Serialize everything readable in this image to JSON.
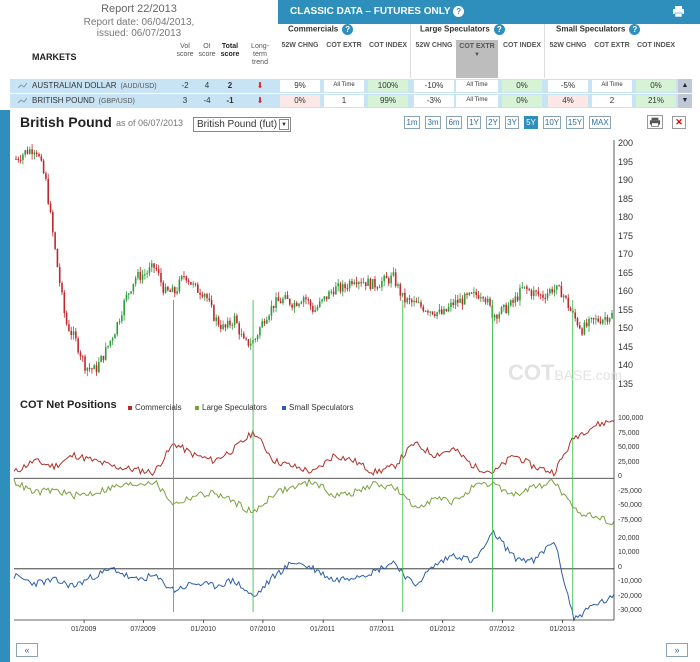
{
  "report": {
    "title": "Report 22/2013",
    "date": "Report date: 06/04/2013,",
    "issued": "issued: 06/07/2013"
  },
  "markets_header": {
    "label": "MARKETS",
    "vol": "Vol score",
    "oi": "OI score",
    "total": "Total score",
    "trend": "Long-term trend"
  },
  "classic": {
    "title": "CLASSIC DATA – FUTURES ONLY",
    "groups": [
      "Commercials",
      "Large Speculators",
      "Small Speculators"
    ],
    "sub": [
      "52W CHNG",
      "COT EXTR",
      "COT INDEX"
    ]
  },
  "markets": [
    {
      "name": "AUSTRALIAN DOLLAR",
      "code": "(AUD/USD)",
      "vol": "-2",
      "oi": "4",
      "total": "2",
      "c52": "9%",
      "cext": "All Time",
      "cidx": "100%",
      "l52": "-10%",
      "lext": "All Time",
      "lidx": "0%",
      "s52": "-5%",
      "sext": "All Time",
      "sidx": "0%"
    },
    {
      "name": "BRITISH POUND",
      "code": "(GBP/USD)",
      "vol": "3",
      "oi": "-4",
      "total": "-1",
      "c52": "0%",
      "cext": "1",
      "cidx": "99%",
      "l52": "-3%",
      "lext": "All Time",
      "lidx": "0%",
      "s52": "4%",
      "sext": "2",
      "sidx": "21%"
    }
  ],
  "chart_header": {
    "title": "British Pound",
    "asof": "as of 06/07/2013",
    "contract": "British Pound (fut)",
    "ranges": [
      "1m",
      "3m",
      "6m",
      "1Y",
      "2Y",
      "3Y",
      "5Y",
      "10Y",
      "15Y",
      "MAX"
    ],
    "active_range": "5Y"
  },
  "watermark": {
    "main": "COT",
    "small": "BASE.com"
  },
  "cot_section": {
    "title": "COT Net Positions",
    "legend": [
      "Commercials",
      "Large Speculators",
      "Small Speculators"
    ]
  },
  "colors": {
    "accent": "#2e8fbd",
    "commercials": "#b03028",
    "large": "#7ba23f",
    "small": "#2c5fa8",
    "up_candle": "#2e9b3a",
    "down_candle": "#c0272d"
  },
  "chart_data": [
    {
      "type": "line",
      "title": "British Pound",
      "x": [
        "2008-06",
        "2008-07",
        "2008-08",
        "2008-09",
        "2008-10",
        "2008-11",
        "2008-12",
        "2009-01",
        "2009-02",
        "2009-03",
        "2009-04",
        "2009-05",
        "2009-06",
        "2009-07",
        "2009-08",
        "2009-09",
        "2009-10",
        "2009-11",
        "2009-12",
        "2010-01",
        "2010-02",
        "2010-03",
        "2010-04",
        "2010-05",
        "2010-06",
        "2010-07",
        "2010-08",
        "2010-09",
        "2010-10",
        "2010-11",
        "2010-12",
        "2011-01",
        "2011-02",
        "2011-03",
        "2011-04",
        "2011-05",
        "2011-06",
        "2011-07",
        "2011-08",
        "2011-09",
        "2011-10",
        "2011-11",
        "2011-12",
        "2012-01",
        "2012-02",
        "2012-03",
        "2012-04",
        "2012-05",
        "2012-06",
        "2012-07",
        "2012-08",
        "2012-09",
        "2012-10",
        "2012-11",
        "2012-12",
        "2013-01",
        "2013-02",
        "2013-03",
        "2013-04",
        "2013-05",
        "2013-06"
      ],
      "series": [
        {
          "values": [
            196,
            198,
            199,
            190,
            170,
            152,
            147,
            140,
            139,
            144,
            150,
            158,
            164,
            165,
            167,
            160,
            160,
            165,
            161,
            160,
            153,
            150,
            153,
            146,
            147,
            153,
            157,
            158,
            157,
            159,
            155,
            158,
            161,
            161,
            164,
            163,
            162,
            163,
            164,
            158,
            157,
            156,
            155,
            154,
            157,
            158,
            159,
            160,
            154,
            155,
            157,
            161,
            160,
            159,
            161,
            160,
            154,
            150,
            152,
            153,
            154
          ]
        }
      ],
      "ylim": [
        135,
        200
      ],
      "yticks": [
        135,
        140,
        145,
        150,
        155,
        160,
        165,
        170,
        175,
        180,
        185,
        190,
        195,
        200
      ]
    },
    {
      "type": "line",
      "title": "COT Net Positions",
      "x": [
        "2008-06",
        "2008-08",
        "2008-10",
        "2008-12",
        "2009-02",
        "2009-04",
        "2009-06",
        "2009-08",
        "2009-10",
        "2009-12",
        "2010-02",
        "2010-04",
        "2010-06",
        "2010-08",
        "2010-10",
        "2010-12",
        "2011-02",
        "2011-04",
        "2011-06",
        "2011-08",
        "2011-10",
        "2011-12",
        "2012-02",
        "2012-04",
        "2012-06",
        "2012-08",
        "2012-10",
        "2012-12",
        "2013-02",
        "2013-04",
        "2013-06"
      ],
      "series": [
        {
          "name": "Commercials",
          "values": [
            10000,
            30000,
            20000,
            40000,
            30000,
            20000,
            15000,
            10000,
            60000,
            40000,
            30000,
            50000,
            80000,
            30000,
            20000,
            10000,
            40000,
            30000,
            10000,
            20000,
            60000,
            40000,
            50000,
            20000,
            10000,
            40000,
            20000,
            10000,
            70000,
            90000,
            100000
          ]
        },
        {
          "name": "Large Speculators",
          "values": [
            -5000,
            -25000,
            -20000,
            -30000,
            -25000,
            -15000,
            -10000,
            -5000,
            -45000,
            -30000,
            -25000,
            -40000,
            -60000,
            -25000,
            -15000,
            -5000,
            -30000,
            -25000,
            -10000,
            -15000,
            -50000,
            -35000,
            -40000,
            -15000,
            -10000,
            -30000,
            -15000,
            -5000,
            -55000,
            -65000,
            -75000
          ]
        }
      ],
      "ylim": [
        -75000,
        100000
      ],
      "yticks": [
        -75000,
        -50000,
        -25000,
        0,
        25000,
        50000,
        75000,
        100000
      ]
    },
    {
      "type": "line",
      "x": [
        "2008-06",
        "2008-08",
        "2008-10",
        "2008-12",
        "2009-02",
        "2009-04",
        "2009-06",
        "2009-08",
        "2009-10",
        "2009-12",
        "2010-02",
        "2010-04",
        "2010-06",
        "2010-08",
        "2010-10",
        "2010-12",
        "2011-02",
        "2011-04",
        "2011-06",
        "2011-08",
        "2011-10",
        "2011-12",
        "2012-02",
        "2012-04",
        "2012-06",
        "2012-08",
        "2012-10",
        "2012-12",
        "2013-02",
        "2013-04",
        "2013-06"
      ],
      "series": [
        {
          "name": "Small Speculators",
          "values": [
            -5000,
            -10000,
            -8000,
            -12000,
            -5000,
            0,
            -8000,
            -5000,
            -15000,
            -10000,
            -12000,
            -8000,
            -20000,
            -5000,
            5000,
            0,
            -8000,
            -5000,
            -2000,
            5000,
            -12000,
            2000,
            10000,
            5000,
            25000,
            8000,
            5000,
            20000,
            -35000,
            -25000,
            -20000
          ]
        }
      ],
      "ylim": [
        -30000,
        20000
      ],
      "yticks": [
        -30000,
        -20000,
        -10000,
        0,
        10000,
        20000
      ]
    }
  ],
  "xaxis": [
    "01/2009",
    "07/2009",
    "01/2010",
    "07/2010",
    "01/2011",
    "07/2011",
    "01/2012",
    "07/2012",
    "01/2013"
  ],
  "nav": {
    "prev": "«",
    "next": "»"
  }
}
